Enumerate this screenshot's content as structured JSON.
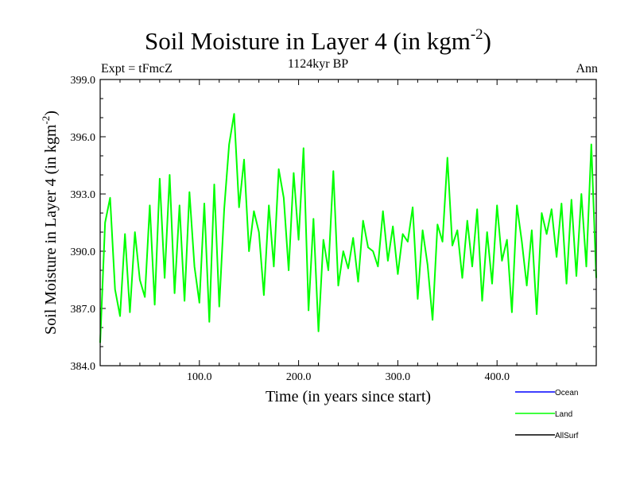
{
  "chart_data": {
    "type": "line",
    "title": "Soil Moisture in Layer 4 (in kgm",
    "title_exponent": "-2",
    "title_suffix": ")",
    "subtitle": "1124kyr BP",
    "left_label": "Expt = tFmcZ",
    "right_label": "Ann",
    "xlabel": "Time (in years since start)",
    "ylabel": "Soil Moisture in Layer 4 (in kgm",
    "ylabel_exponent": "-2",
    "ylabel_suffix": ")",
    "xlim": [
      0,
      500
    ],
    "ylim": [
      384.0,
      399.0
    ],
    "xticks": [
      100,
      200,
      300,
      400
    ],
    "xtick_labels": [
      "100.0",
      "200.0",
      "300.0",
      "400.0"
    ],
    "yticks": [
      384,
      387,
      390,
      393,
      396,
      399
    ],
    "ytick_labels": [
      "384.0",
      "387.0",
      "390.0",
      "393.0",
      "396.0",
      "399.0"
    ],
    "legend": [
      {
        "name": "Ocean",
        "color": "#0000ff"
      },
      {
        "name": "Land",
        "color": "#00ff00"
      },
      {
        "name": "AllSurf",
        "color": "#000000"
      }
    ],
    "series": [
      {
        "name": "Land",
        "color": "#00ff00",
        "x": [
          0,
          5,
          10,
          15,
          20,
          25,
          30,
          35,
          40,
          45,
          50,
          55,
          60,
          65,
          70,
          75,
          80,
          85,
          90,
          95,
          100,
          105,
          110,
          115,
          120,
          125,
          130,
          135,
          140,
          145,
          150,
          155,
          160,
          165,
          170,
          175,
          180,
          185,
          190,
          195,
          200,
          205,
          210,
          215,
          220,
          225,
          230,
          235,
          240,
          245,
          250,
          255,
          260,
          265,
          270,
          275,
          280,
          285,
          290,
          295,
          300,
          305,
          310,
          315,
          320,
          325,
          330,
          335,
          340,
          345,
          350,
          355,
          360,
          365,
          370,
          375,
          380,
          385,
          390,
          395,
          400,
          405,
          410,
          415,
          420,
          425,
          430,
          435,
          440,
          445,
          450,
          455,
          460,
          465,
          470,
          475,
          480,
          485,
          490,
          495,
          500
        ],
        "values": [
          385.2,
          391.5,
          392.8,
          388.0,
          386.6,
          390.9,
          386.8,
          391.0,
          388.5,
          387.6,
          392.4,
          387.2,
          393.8,
          388.6,
          394.0,
          387.8,
          392.4,
          387.4,
          393.1,
          389.2,
          387.3,
          392.5,
          386.3,
          393.5,
          387.1,
          392.2,
          395.6,
          397.2,
          392.3,
          394.8,
          390.0,
          392.1,
          391.0,
          387.7,
          392.4,
          389.2,
          394.3,
          392.8,
          389.0,
          394.1,
          390.6,
          395.4,
          386.9,
          391.7,
          385.8,
          390.6,
          389.0,
          394.2,
          388.2,
          390.0,
          389.1,
          390.7,
          388.4,
          391.6,
          390.2,
          390.0,
          389.2,
          392.1,
          389.5,
          391.3,
          388.8,
          390.9,
          390.5,
          392.3,
          387.5,
          391.1,
          389.3,
          386.4,
          391.4,
          390.5,
          394.9,
          390.3,
          391.1,
          388.6,
          391.6,
          389.2,
          392.2,
          387.4,
          391.0,
          388.3,
          392.4,
          389.5,
          390.6,
          386.8,
          392.4,
          390.5,
          388.2,
          391.1,
          386.7,
          392.0,
          390.9,
          392.2,
          389.7,
          392.5,
          388.3,
          392.7,
          388.7,
          393.0,
          389.2,
          395.6,
          388.6
        ]
      }
    ]
  }
}
